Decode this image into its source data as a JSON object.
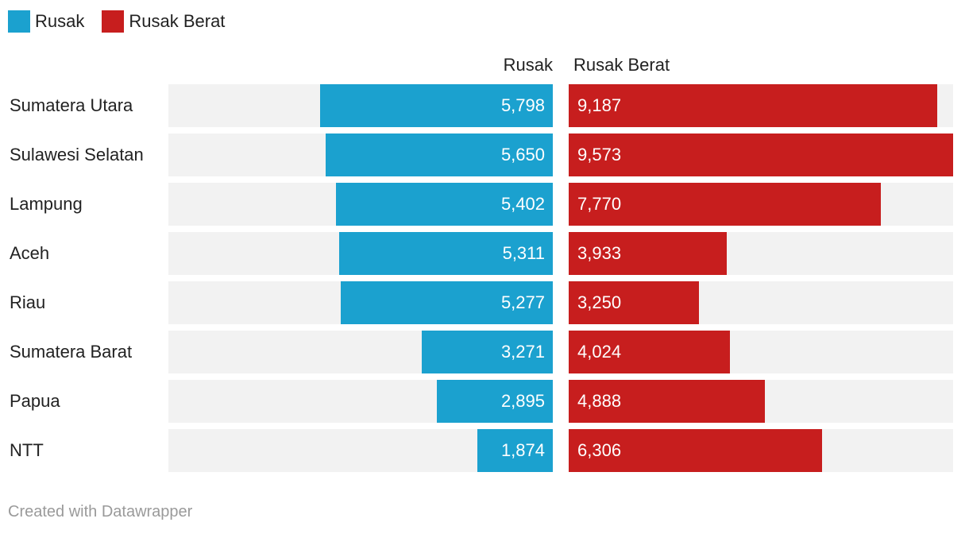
{
  "chart_data": {
    "type": "bar",
    "orientation": "horizontal-split",
    "title": "",
    "categories": [
      "Sumatera Utara",
      "Sulawesi Selatan",
      "Lampung",
      "Aceh",
      "Riau",
      "Sumatera Barat",
      "Papua",
      "NTT"
    ],
    "series": [
      {
        "name": "Rusak",
        "color": "#1ba1cf",
        "values": [
          5798,
          5650,
          5402,
          5311,
          5277,
          3271,
          2895,
          1874
        ],
        "labels": [
          "5,798",
          "5,650",
          "5,402",
          "5,311",
          "5,277",
          "3,271",
          "2,895",
          "1,874"
        ]
      },
      {
        "name": "Rusak Berat",
        "color": "#c71e1e",
        "values": [
          9187,
          9573,
          7770,
          3933,
          3250,
          4024,
          4888,
          6306
        ],
        "labels": [
          "9,187",
          "9,573",
          "7,770",
          "3,933",
          "3,250",
          "4,024",
          "4,888",
          "6,306"
        ]
      }
    ],
    "xlim": [
      0,
      9573
    ],
    "legend": {
      "position": "top-left",
      "entries": [
        "Rusak",
        "Rusak Berat"
      ]
    },
    "column_headers": {
      "left": "Rusak",
      "right": "Rusak Berat"
    }
  },
  "credit": "Created with Datawrapper"
}
